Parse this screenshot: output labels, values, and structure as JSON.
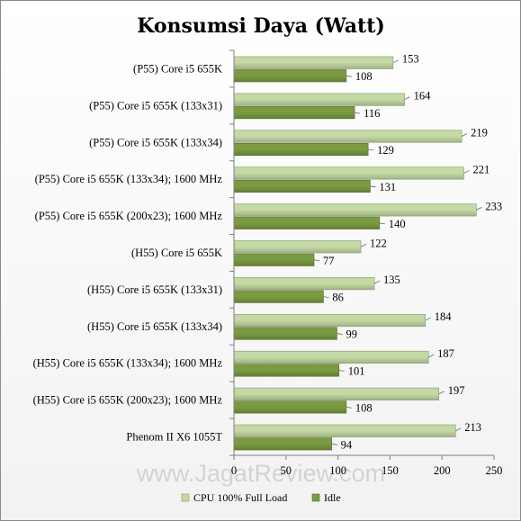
{
  "chart_data": {
    "type": "bar",
    "orientation": "horizontal",
    "title": "Konsumsi Daya (Watt)",
    "watermark": "www.JagatReview.com",
    "categories": [
      "(P55) Core i5 655K",
      "(P55) Core i5 655K (133x31)",
      "(P55) Core i5 655K (133x34)",
      "(P55) Core i5 655K (133x34);  1600 MHz",
      "(P55) Core i5 655K (200x23);  1600 MHz",
      "(H55) Core i5 655K",
      "(H55) Core i5 655K (133x31)",
      "(H55) Core i5 655K (133x34)",
      "(H55) Core i5 655K (133x34);  1600 MHz",
      "(H55) Core i5 655K (200x23);  1600 MHz",
      "Phenom II X6 1055T"
    ],
    "series": [
      {
        "name": "CPU 100% Full Load",
        "color": "#c4d9a4",
        "values": [
          153,
          164,
          219,
          221,
          233,
          122,
          135,
          184,
          187,
          197,
          213
        ]
      },
      {
        "name": "Idle",
        "color": "#7a9b42",
        "values": [
          108,
          116,
          129,
          131,
          140,
          77,
          86,
          99,
          101,
          108,
          94
        ]
      }
    ],
    "xlim": [
      0,
      250
    ],
    "xticks": [
      0,
      50,
      100,
      150,
      200,
      250
    ],
    "data_labels": true,
    "grid": false,
    "legend_position": "bottom"
  }
}
